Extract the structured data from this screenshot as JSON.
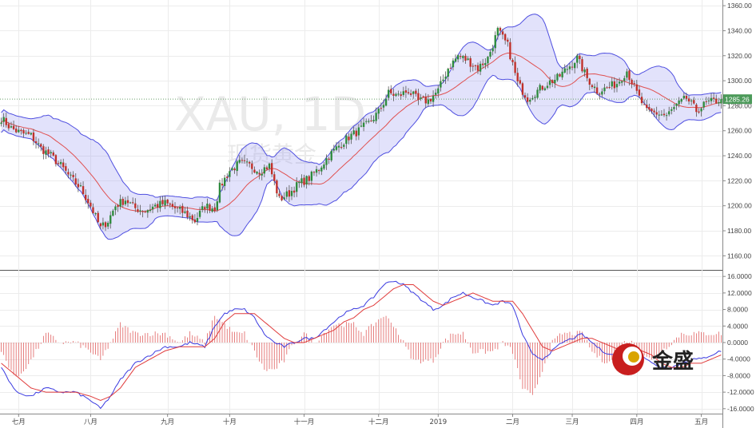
{
  "chart_data": {
    "type": "candlestick",
    "symbol_watermark": "XAU, 1D",
    "subtitle_watermark": "现货黄金",
    "brand_logo_text": "金盛",
    "last_price_label": "1285.26",
    "last_price": 1285.26,
    "x_months": [
      "七月",
      "八月",
      "九月",
      "十月",
      "十一月",
      "十二月",
      "2019",
      "二月",
      "三月",
      "四月",
      "五月"
    ],
    "price_axis": {
      "ylim": [
        1150,
        1362
      ],
      "ticks": [
        1160,
        1180,
        1200,
        1220,
        1240,
        1260,
        1280,
        1300,
        1320,
        1340,
        1360
      ],
      "tick_labels": [
        "1160.00",
        "1180.00",
        "1200.00",
        "1220.00",
        "1240.00",
        "1260.00",
        "1280.00",
        "1300.00",
        "1320.00",
        "1340.00",
        "1360.00"
      ]
    },
    "macd_axis": {
      "ylim": [
        -17,
        17
      ],
      "ticks": [
        16,
        12,
        8,
        4,
        0,
        -4,
        -8,
        -12,
        -16
      ],
      "tick_labels": [
        "16.0000",
        "12.0000",
        "8.0000",
        "4.0000",
        "0.0000",
        "-4.0000",
        "-8.0000",
        "-12.0000",
        "-16.0000"
      ]
    },
    "close_anchors": [
      [
        0,
        1270
      ],
      [
        4,
        1262
      ],
      [
        8,
        1258
      ],
      [
        12,
        1256
      ],
      [
        16,
        1246
      ],
      [
        20,
        1240
      ],
      [
        24,
        1232
      ],
      [
        28,
        1222
      ],
      [
        32,
        1214
      ],
      [
        36,
        1200
      ],
      [
        40,
        1182
      ],
      [
        43,
        1188
      ],
      [
        46,
        1200
      ],
      [
        50,
        1205
      ],
      [
        54,
        1198
      ],
      [
        58,
        1196
      ],
      [
        62,
        1200
      ],
      [
        66,
        1202
      ],
      [
        70,
        1198
      ],
      [
        74,
        1194
      ],
      [
        78,
        1188
      ],
      [
        82,
        1200
      ],
      [
        86,
        1198
      ],
      [
        88,
        1215
      ],
      [
        92,
        1228
      ],
      [
        96,
        1234
      ],
      [
        100,
        1232
      ],
      [
        104,
        1228
      ],
      [
        108,
        1232
      ],
      [
        112,
        1205
      ],
      [
        116,
        1210
      ],
      [
        120,
        1218
      ],
      [
        124,
        1222
      ],
      [
        128,
        1230
      ],
      [
        132,
        1240
      ],
      [
        136,
        1248
      ],
      [
        140,
        1255
      ],
      [
        144,
        1260
      ],
      [
        148,
        1266
      ],
      [
        152,
        1275
      ],
      [
        156,
        1290
      ],
      [
        160,
        1288
      ],
      [
        164,
        1292
      ],
      [
        168,
        1284
      ],
      [
        172,
        1284
      ],
      [
        176,
        1292
      ],
      [
        180,
        1310
      ],
      [
        184,
        1320
      ],
      [
        188,
        1316
      ],
      [
        192,
        1310
      ],
      [
        196,
        1318
      ],
      [
        200,
        1340
      ],
      [
        204,
        1328
      ],
      [
        208,
        1298
      ],
      [
        212,
        1286
      ],
      [
        216,
        1292
      ],
      [
        220,
        1298
      ],
      [
        224,
        1302
      ],
      [
        228,
        1310
      ],
      [
        232,
        1318
      ],
      [
        236,
        1302
      ],
      [
        240,
        1292
      ],
      [
        244,
        1294
      ],
      [
        248,
        1298
      ],
      [
        252,
        1308
      ],
      [
        256,
        1290
      ],
      [
        260,
        1275
      ],
      [
        264,
        1274
      ],
      [
        268,
        1272
      ],
      [
        272,
        1280
      ],
      [
        276,
        1286
      ],
      [
        280,
        1276
      ],
      [
        284,
        1282
      ],
      [
        288,
        1284
      ],
      [
        290,
        1285.26
      ]
    ],
    "macd_anchors": [
      [
        0,
        -6,
        -5
      ],
      [
        6,
        -12,
        -8
      ],
      [
        12,
        -13,
        -11
      ],
      [
        18,
        -11,
        -12
      ],
      [
        24,
        -12,
        -12
      ],
      [
        30,
        -12,
        -12
      ],
      [
        36,
        -14,
        -13
      ],
      [
        40,
        -16,
        -14
      ],
      [
        44,
        -13,
        -13
      ],
      [
        48,
        -9,
        -11
      ],
      [
        54,
        -5,
        -6
      ],
      [
        60,
        -3,
        -4
      ],
      [
        66,
        -1,
        -2
      ],
      [
        72,
        -1,
        -1
      ],
      [
        76,
        0,
        -1
      ],
      [
        82,
        -1,
        -1
      ],
      [
        86,
        4,
        1
      ],
      [
        90,
        7,
        5
      ],
      [
        94,
        8,
        7
      ],
      [
        98,
        8,
        7
      ],
      [
        102,
        6,
        7
      ],
      [
        106,
        2,
        5
      ],
      [
        110,
        0,
        3
      ],
      [
        114,
        -1,
        1
      ],
      [
        118,
        0,
        0
      ],
      [
        122,
        1,
        0
      ],
      [
        126,
        1,
        1
      ],
      [
        130,
        3,
        2
      ],
      [
        134,
        5,
        3
      ],
      [
        138,
        7,
        5
      ],
      [
        142,
        8,
        6
      ],
      [
        146,
        9,
        8
      ],
      [
        150,
        11,
        9
      ],
      [
        154,
        14,
        11
      ],
      [
        158,
        15,
        13
      ],
      [
        162,
        14,
        14
      ],
      [
        166,
        12,
        14
      ],
      [
        170,
        10,
        12
      ],
      [
        174,
        8,
        10
      ],
      [
        178,
        9,
        9
      ],
      [
        182,
        11,
        10
      ],
      [
        186,
        12,
        11
      ],
      [
        190,
        11,
        12
      ],
      [
        194,
        10,
        11
      ],
      [
        198,
        9,
        10
      ],
      [
        202,
        10,
        10
      ],
      [
        206,
        9,
        10
      ],
      [
        210,
        2,
        7
      ],
      [
        214,
        -3,
        3
      ],
      [
        218,
        -4,
        -1
      ],
      [
        222,
        -2,
        -2
      ],
      [
        226,
        0,
        -1
      ],
      [
        230,
        1,
        0
      ],
      [
        234,
        2,
        1
      ],
      [
        238,
        0,
        1
      ],
      [
        242,
        -2,
        0
      ],
      [
        246,
        -3,
        -1
      ],
      [
        250,
        -2,
        -2
      ],
      [
        254,
        -1,
        -1
      ],
      [
        258,
        -3,
        -2
      ],
      [
        262,
        -5,
        -3
      ],
      [
        266,
        -6,
        -5
      ],
      [
        270,
        -6,
        -6
      ],
      [
        274,
        -5,
        -6
      ],
      [
        278,
        -4,
        -5
      ],
      [
        282,
        -4,
        -5
      ],
      [
        286,
        -3,
        -4
      ],
      [
        290,
        -2,
        -3
      ]
    ]
  }
}
